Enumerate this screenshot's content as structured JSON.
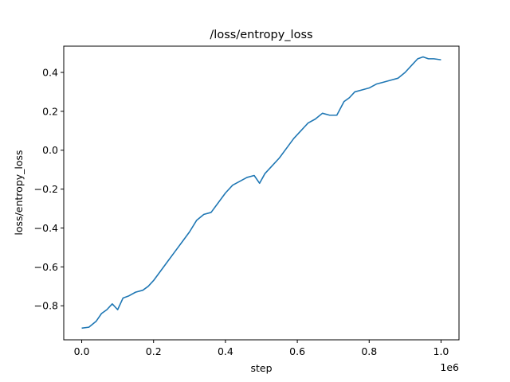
{
  "chart_data": {
    "type": "line",
    "title": "/loss/entropy_loss",
    "xlabel": "step",
    "ylabel": "loss/entropy_loss",
    "x_offset_label": "1e6",
    "xlim": [
      -50000,
      1050000
    ],
    "ylim": [
      -0.975,
      0.535
    ],
    "xticks": [
      0,
      200000,
      400000,
      600000,
      800000,
      1000000
    ],
    "xtick_labels": [
      "0.0",
      "0.2",
      "0.4",
      "0.6",
      "0.8",
      "1.0"
    ],
    "yticks": [
      -0.8,
      -0.6,
      -0.4,
      -0.2,
      0.0,
      0.2,
      0.4
    ],
    "ytick_labels": [
      "−0.8",
      "−0.6",
      "−0.4",
      "−0.2",
      "0.0",
      "0.2",
      "0.4"
    ],
    "grid": false,
    "series": [
      {
        "color": "#1f77b4",
        "x": [
          0,
          20000,
          40000,
          55000,
          70000,
          85000,
          100000,
          115000,
          130000,
          150000,
          170000,
          185000,
          200000,
          220000,
          240000,
          260000,
          280000,
          300000,
          320000,
          340000,
          360000,
          380000,
          400000,
          420000,
          440000,
          460000,
          480000,
          495000,
          510000,
          530000,
          550000,
          570000,
          590000,
          610000,
          630000,
          650000,
          670000,
          690000,
          710000,
          730000,
          745000,
          760000,
          780000,
          800000,
          820000,
          840000,
          860000,
          880000,
          900000,
          920000,
          935000,
          950000,
          965000,
          980000,
          1000000
        ],
        "y": [
          -0.915,
          -0.91,
          -0.88,
          -0.84,
          -0.82,
          -0.79,
          -0.82,
          -0.76,
          -0.75,
          -0.73,
          -0.72,
          -0.7,
          -0.67,
          -0.62,
          -0.57,
          -0.52,
          -0.47,
          -0.42,
          -0.36,
          -0.33,
          -0.32,
          -0.27,
          -0.22,
          -0.18,
          -0.16,
          -0.14,
          -0.13,
          -0.17,
          -0.12,
          -0.08,
          -0.04,
          0.01,
          0.06,
          0.1,
          0.14,
          0.16,
          0.19,
          0.18,
          0.18,
          0.25,
          0.27,
          0.3,
          0.31,
          0.32,
          0.34,
          0.35,
          0.36,
          0.37,
          0.4,
          0.44,
          0.47,
          0.48,
          0.47,
          0.47,
          0.465
        ]
      }
    ]
  }
}
